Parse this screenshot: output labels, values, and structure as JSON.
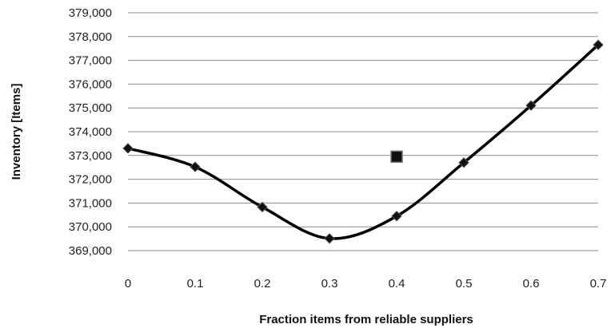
{
  "chart_data": {
    "type": "line",
    "title": "",
    "xlabel": "Fraction items from reliable suppliers",
    "ylabel": "Inventory [Items]",
    "x": [
      0,
      0.1,
      0.2,
      0.3,
      0.4,
      0.5,
      0.6,
      0.7
    ],
    "x_tick_labels": [
      "0",
      "0.1",
      "0.2",
      "0.3",
      "0.4",
      "0.5",
      "0.6",
      "0.7"
    ],
    "y_tick_labels": [
      "369,000",
      "370,000",
      "371,000",
      "372,000",
      "373,000",
      "374,000",
      "375,000",
      "376,000",
      "377,000",
      "378,000",
      "379,000"
    ],
    "xlim": [
      0,
      0.7
    ],
    "ylim": [
      369000,
      379000
    ],
    "y_ticks": [
      369000,
      370000,
      371000,
      372000,
      373000,
      374000,
      375000,
      376000,
      377000,
      378000,
      379000
    ],
    "grid": "horizontal",
    "series": [
      {
        "marker": "diamond",
        "line": "smooth",
        "color": "#000000",
        "values": [
          373300,
          372520,
          370830,
          369510,
          370450,
          372700,
          375100,
          377650
        ]
      },
      {
        "marker": "square",
        "line": "none",
        "color": "#000000",
        "points": [
          {
            "x": 0.4,
            "y": 372950
          }
        ]
      }
    ]
  }
}
